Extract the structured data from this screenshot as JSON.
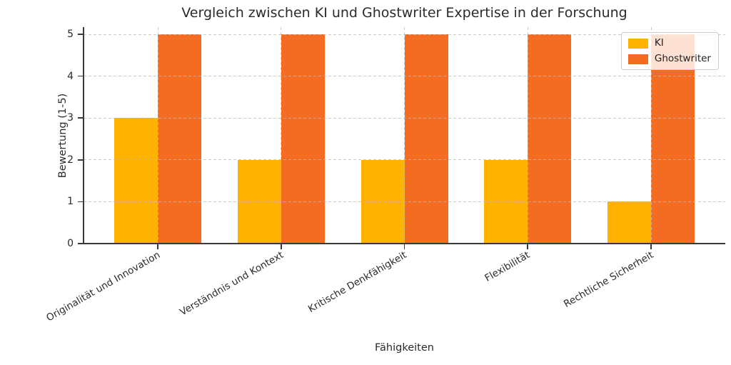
{
  "chart_data": {
    "type": "bar",
    "title": "Vergleich zwischen KI und Ghostwriter Expertise in der Forschung",
    "xlabel": "Fähigkeiten",
    "ylabel": "Bewertung (1-5)",
    "categories": [
      "Originalität und Innovation",
      "Verständnis und Kontext",
      "Kritische Denkfähigkeit",
      "Flexibilität",
      "Rechtliche Sicherheit"
    ],
    "series": [
      {
        "name": "KI",
        "color": "#FFB300",
        "values": [
          3,
          2,
          2,
          2,
          1
        ]
      },
      {
        "name": "Ghostwriter",
        "color": "#F36C21",
        "values": [
          5,
          5,
          5,
          5,
          5
        ]
      }
    ],
    "ylim": [
      0,
      5
    ],
    "yticks": [
      0,
      1,
      2,
      3,
      4,
      5
    ],
    "grid": true,
    "grid_style": "dashed",
    "grid_color": "#c9c9c9",
    "legend_position": "upper right",
    "legend_framealpha": 0.8,
    "xtick_rotation": 30
  }
}
